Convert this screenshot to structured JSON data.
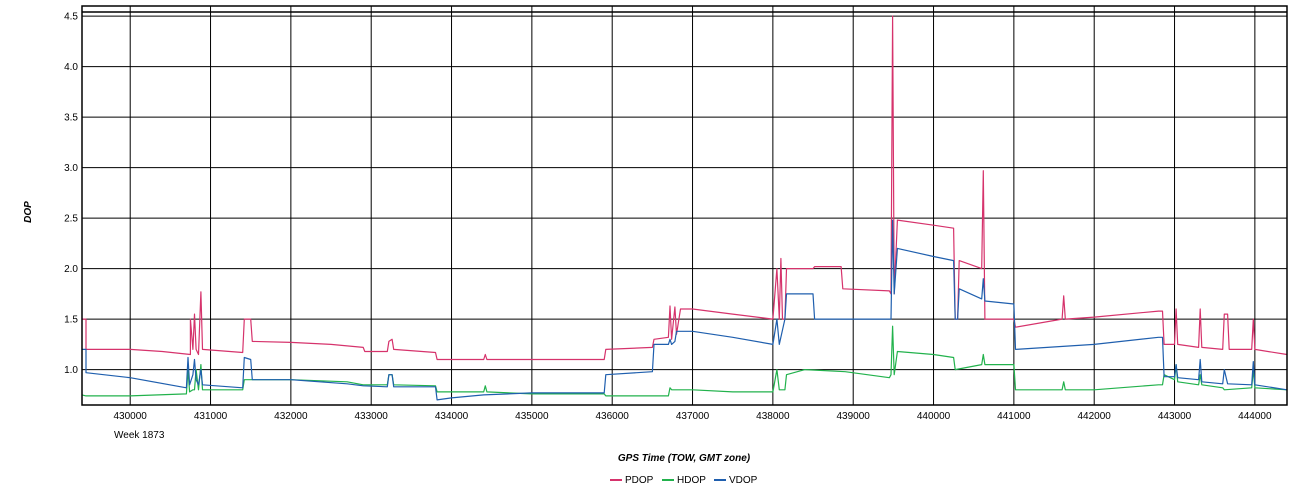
{
  "chart_data": {
    "type": "line",
    "xlabel": "GPS Time (TOW, GMT zone)",
    "ylabel": "DOP",
    "x_sublabel": "Week 1873",
    "xlim": [
      429400,
      444400
    ],
    "ylim": [
      0.65,
      4.6
    ],
    "x_ticks": [
      430000,
      431000,
      432000,
      433000,
      434000,
      435000,
      436000,
      437000,
      438000,
      439000,
      440000,
      441000,
      442000,
      443000,
      444000
    ],
    "x_tick_labels": [
      "430000",
      "431000",
      "432000",
      "433000",
      "434000",
      "435000",
      "436000",
      "437000",
      "438000",
      "439000",
      "440000",
      "441000",
      "442000",
      "443000",
      "444000"
    ],
    "y_ticks": [
      1.0,
      1.5,
      2.0,
      2.5,
      3.0,
      3.5,
      4.0,
      4.5
    ],
    "y_tick_labels": [
      "1.0",
      "1.5",
      "2.0",
      "2.5",
      "3.0",
      "3.5",
      "4.0",
      "4.5"
    ],
    "grid": true,
    "legend_position": "bottom-center",
    "series": [
      {
        "name": "PDOP",
        "color": "#d6336c",
        "points": [
          [
            429400,
            1.5
          ],
          [
            429450,
            1.5
          ],
          [
            429450,
            1.2
          ],
          [
            430000,
            1.2
          ],
          [
            430400,
            1.18
          ],
          [
            430750,
            1.15
          ],
          [
            430750,
            1.5
          ],
          [
            430780,
            1.2
          ],
          [
            430800,
            1.55
          ],
          [
            430820,
            1.2
          ],
          [
            430850,
            1.15
          ],
          [
            430880,
            1.77
          ],
          [
            430900,
            1.2
          ],
          [
            431400,
            1.17
          ],
          [
            431420,
            1.5
          ],
          [
            431500,
            1.5
          ],
          [
            431520,
            1.28
          ],
          [
            432000,
            1.27
          ],
          [
            432500,
            1.25
          ],
          [
            432900,
            1.22
          ],
          [
            432920,
            1.18
          ],
          [
            433200,
            1.18
          ],
          [
            433220,
            1.28
          ],
          [
            433260,
            1.3
          ],
          [
            433280,
            1.2
          ],
          [
            433800,
            1.17
          ],
          [
            433820,
            1.1
          ],
          [
            434400,
            1.1
          ],
          [
            434420,
            1.15
          ],
          [
            434440,
            1.1
          ],
          [
            435000,
            1.1
          ],
          [
            435900,
            1.1
          ],
          [
            435920,
            1.2
          ],
          [
            436500,
            1.22
          ],
          [
            436520,
            1.3
          ],
          [
            436700,
            1.32
          ],
          [
            436720,
            1.63
          ],
          [
            436740,
            1.3
          ],
          [
            436780,
            1.62
          ],
          [
            436800,
            1.35
          ],
          [
            436850,
            1.6
          ],
          [
            437000,
            1.6
          ],
          [
            437500,
            1.55
          ],
          [
            438000,
            1.5
          ],
          [
            438050,
            2.0
          ],
          [
            438080,
            1.5
          ],
          [
            438100,
            2.1
          ],
          [
            438120,
            1.5
          ],
          [
            438150,
            1.5
          ],
          [
            438170,
            2.0
          ],
          [
            438500,
            2.0
          ],
          [
            438520,
            2.02
          ],
          [
            438850,
            2.02
          ],
          [
            438870,
            1.8
          ],
          [
            439450,
            1.78
          ],
          [
            439470,
            1.75
          ],
          [
            439490,
            4.5
          ],
          [
            439510,
            1.75
          ],
          [
            439550,
            2.48
          ],
          [
            440000,
            2.43
          ],
          [
            440250,
            2.4
          ],
          [
            440270,
            1.5
          ],
          [
            440300,
            1.5
          ],
          [
            440320,
            2.08
          ],
          [
            440600,
            2.0
          ],
          [
            440620,
            2.97
          ],
          [
            440640,
            1.5
          ],
          [
            441000,
            1.5
          ],
          [
            441020,
            1.42
          ],
          [
            441600,
            1.5
          ],
          [
            441620,
            1.73
          ],
          [
            441640,
            1.5
          ],
          [
            442000,
            1.52
          ],
          [
            442800,
            1.58
          ],
          [
            442850,
            1.58
          ],
          [
            442870,
            1.25
          ],
          [
            443000,
            1.25
          ],
          [
            443020,
            1.6
          ],
          [
            443040,
            1.25
          ],
          [
            443300,
            1.22
          ],
          [
            443320,
            1.6
          ],
          [
            443340,
            1.22
          ],
          [
            443600,
            1.2
          ],
          [
            443620,
            1.55
          ],
          [
            443660,
            1.55
          ],
          [
            443680,
            1.2
          ],
          [
            443960,
            1.2
          ],
          [
            443980,
            1.5
          ],
          [
            444000,
            1.2
          ],
          [
            444400,
            1.15
          ]
        ]
      },
      {
        "name": "HDOP",
        "color": "#22b24c",
        "points": [
          [
            429400,
            0.75
          ],
          [
            429450,
            0.74
          ],
          [
            430000,
            0.74
          ],
          [
            430700,
            0.76
          ],
          [
            430720,
            1.0
          ],
          [
            430740,
            0.78
          ],
          [
            430780,
            0.8
          ],
          [
            430800,
            0.8
          ],
          [
            430820,
            1.0
          ],
          [
            430850,
            0.8
          ],
          [
            430880,
            1.05
          ],
          [
            430900,
            0.8
          ],
          [
            431400,
            0.8
          ],
          [
            431420,
            0.9
          ],
          [
            432000,
            0.9
          ],
          [
            432700,
            0.88
          ],
          [
            432900,
            0.85
          ],
          [
            433200,
            0.85
          ],
          [
            433220,
            0.95
          ],
          [
            433260,
            0.95
          ],
          [
            433280,
            0.85
          ],
          [
            433800,
            0.84
          ],
          [
            433820,
            0.78
          ],
          [
            434400,
            0.78
          ],
          [
            434420,
            0.84
          ],
          [
            434440,
            0.78
          ],
          [
            435000,
            0.76
          ],
          [
            435900,
            0.76
          ],
          [
            435920,
            0.74
          ],
          [
            436700,
            0.74
          ],
          [
            436720,
            0.82
          ],
          [
            436740,
            0.8
          ],
          [
            437000,
            0.8
          ],
          [
            437500,
            0.78
          ],
          [
            438000,
            0.78
          ],
          [
            438050,
            1.0
          ],
          [
            438080,
            0.8
          ],
          [
            438150,
            0.8
          ],
          [
            438170,
            0.95
          ],
          [
            438400,
            1.0
          ],
          [
            438900,
            0.98
          ],
          [
            439450,
            0.92
          ],
          [
            439470,
            0.95
          ],
          [
            439490,
            1.43
          ],
          [
            439510,
            0.95
          ],
          [
            439550,
            1.18
          ],
          [
            440000,
            1.15
          ],
          [
            440250,
            1.12
          ],
          [
            440270,
            1.0
          ],
          [
            440600,
            1.05
          ],
          [
            440620,
            1.15
          ],
          [
            440640,
            1.05
          ],
          [
            441000,
            1.05
          ],
          [
            441020,
            0.8
          ],
          [
            441600,
            0.8
          ],
          [
            441620,
            0.88
          ],
          [
            441640,
            0.8
          ],
          [
            442000,
            0.8
          ],
          [
            442800,
            0.85
          ],
          [
            442850,
            0.85
          ],
          [
            442870,
            0.95
          ],
          [
            443000,
            0.9
          ],
          [
            443020,
            1.05
          ],
          [
            443040,
            0.88
          ],
          [
            443300,
            0.85
          ],
          [
            443320,
            0.95
          ],
          [
            443340,
            0.85
          ],
          [
            443600,
            0.82
          ],
          [
            443620,
            0.8
          ],
          [
            443960,
            0.82
          ],
          [
            443980,
            1.0
          ],
          [
            444000,
            0.82
          ],
          [
            444400,
            0.8
          ]
        ]
      },
      {
        "name": "VDOP",
        "color": "#1f5fae",
        "points": [
          [
            429400,
            1.2
          ],
          [
            429450,
            1.2
          ],
          [
            429450,
            0.97
          ],
          [
            430000,
            0.92
          ],
          [
            430700,
            0.82
          ],
          [
            430720,
            1.12
          ],
          [
            430740,
            0.85
          ],
          [
            430780,
            0.95
          ],
          [
            430800,
            1.1
          ],
          [
            430820,
            0.9
          ],
          [
            430850,
            0.85
          ],
          [
            430880,
            1.0
          ],
          [
            430900,
            0.85
          ],
          [
            431400,
            0.82
          ],
          [
            431420,
            1.12
          ],
          [
            431500,
            1.1
          ],
          [
            431520,
            0.9
          ],
          [
            432000,
            0.9
          ],
          [
            432700,
            0.86
          ],
          [
            432900,
            0.84
          ],
          [
            433200,
            0.83
          ],
          [
            433220,
            0.95
          ],
          [
            433260,
            0.95
          ],
          [
            433280,
            0.83
          ],
          [
            433800,
            0.83
          ],
          [
            433820,
            0.7
          ],
          [
            434000,
            0.72
          ],
          [
            434400,
            0.75
          ],
          [
            435000,
            0.77
          ],
          [
            435900,
            0.77
          ],
          [
            435920,
            0.95
          ],
          [
            436500,
            0.98
          ],
          [
            436520,
            1.25
          ],
          [
            436700,
            1.25
          ],
          [
            436720,
            1.3
          ],
          [
            436740,
            1.25
          ],
          [
            436780,
            1.28
          ],
          [
            436800,
            1.38
          ],
          [
            437000,
            1.38
          ],
          [
            437500,
            1.32
          ],
          [
            438000,
            1.25
          ],
          [
            438050,
            1.5
          ],
          [
            438080,
            1.25
          ],
          [
            438150,
            1.5
          ],
          [
            438170,
            1.75
          ],
          [
            438500,
            1.75
          ],
          [
            438520,
            1.5
          ],
          [
            439450,
            1.5
          ],
          [
            439470,
            1.5
          ],
          [
            439490,
            2.48
          ],
          [
            439510,
            1.75
          ],
          [
            439550,
            2.2
          ],
          [
            440000,
            2.12
          ],
          [
            440250,
            2.08
          ],
          [
            440270,
            1.5
          ],
          [
            440300,
            1.5
          ],
          [
            440320,
            1.8
          ],
          [
            440600,
            1.7
          ],
          [
            440620,
            1.9
          ],
          [
            440640,
            1.68
          ],
          [
            441000,
            1.65
          ],
          [
            441020,
            1.2
          ],
          [
            442000,
            1.25
          ],
          [
            442800,
            1.32
          ],
          [
            442850,
            1.32
          ],
          [
            442870,
            0.93
          ],
          [
            443000,
            0.93
          ],
          [
            443020,
            1.05
          ],
          [
            443040,
            0.92
          ],
          [
            443300,
            0.9
          ],
          [
            443320,
            1.1
          ],
          [
            443340,
            0.88
          ],
          [
            443600,
            0.86
          ],
          [
            443620,
            1.0
          ],
          [
            443660,
            0.86
          ],
          [
            443960,
            0.85
          ],
          [
            443980,
            1.08
          ],
          [
            444000,
            0.85
          ],
          [
            444400,
            0.8
          ]
        ]
      }
    ]
  }
}
